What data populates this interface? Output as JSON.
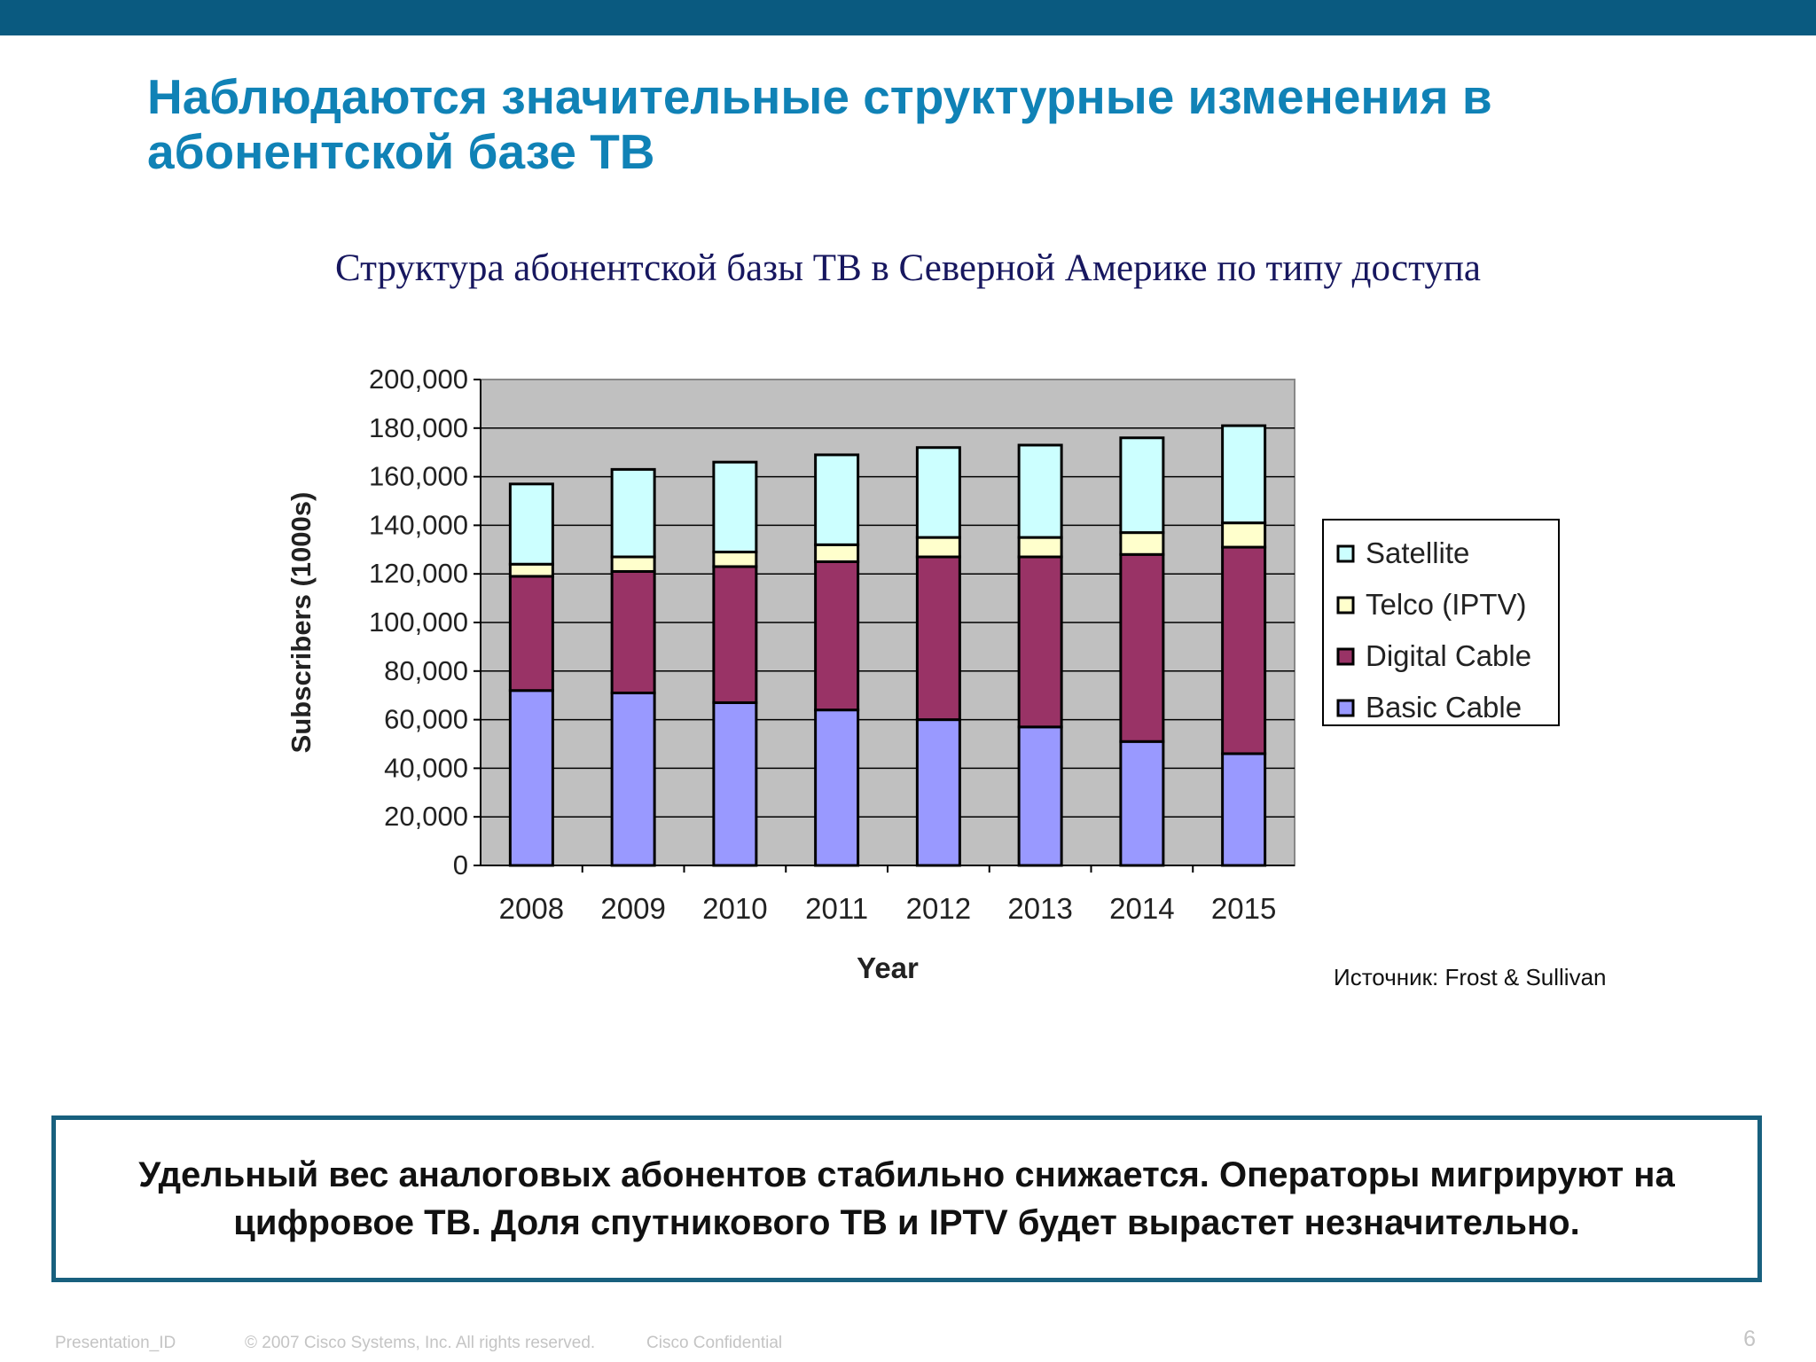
{
  "slide": {
    "title": "Наблюдаются значительные структурные изменения в абонентской базе ТВ",
    "subtitle": "Структура абонентской  базы ТВ в Северной  Америке по типу доступа",
    "conclusion": "Удельный вес аналоговых абонентов стабильно снижается. Операторы мигрируют на цифровое ТВ. Доля спутникового ТВ и IPTV будет вырастет незначительно.",
    "footer": {
      "presentation_id": "Presentation_ID",
      "copyright": "© 2007 Cisco Systems, Inc. All rights reserved.",
      "confidential": "Cisco Confidential",
      "page": "6"
    },
    "colors": {
      "topbar": "#0a5a80",
      "title": "#1082b6",
      "subtitle": "#17175f",
      "frame": "#18607e"
    }
  },
  "chart_data": {
    "type": "bar",
    "stacked": true,
    "categories": [
      "2008",
      "2009",
      "2010",
      "2011",
      "2012",
      "2013",
      "2014",
      "2015"
    ],
    "series": [
      {
        "name": "Basic Cable",
        "color": "#9999ff",
        "values": [
          72000,
          71000,
          67000,
          64000,
          60000,
          57000,
          51000,
          46000
        ]
      },
      {
        "name": "Digital Cable",
        "color": "#993366",
        "values": [
          47000,
          50000,
          56000,
          61000,
          67000,
          70000,
          77000,
          85000
        ]
      },
      {
        "name": "Telco (IPTV)",
        "color": "#ffffcc",
        "values": [
          5000,
          6000,
          6000,
          7000,
          8000,
          8000,
          9000,
          10000
        ]
      },
      {
        "name": "Satellite",
        "color": "#ccffff",
        "values": [
          33000,
          36000,
          37000,
          37000,
          37000,
          38000,
          39000,
          40000
        ]
      }
    ],
    "xlabel": "Year",
    "ylabel": "Subscribers (1000s)",
    "ylim": [
      0,
      200000
    ],
    "yticks": [
      "0",
      "20,000",
      "40,000",
      "60,000",
      "80,000",
      "100,000",
      "120,000",
      "140,000",
      "160,000",
      "180,000",
      "200,000"
    ],
    "legend_order": [
      "Satellite",
      "Telco (IPTV)",
      "Digital Cable",
      "Basic Cable"
    ],
    "legend_position": "right",
    "grid": true,
    "plot_background": "#c0c0c0",
    "source": "Источник: Frost & Sullivan"
  }
}
